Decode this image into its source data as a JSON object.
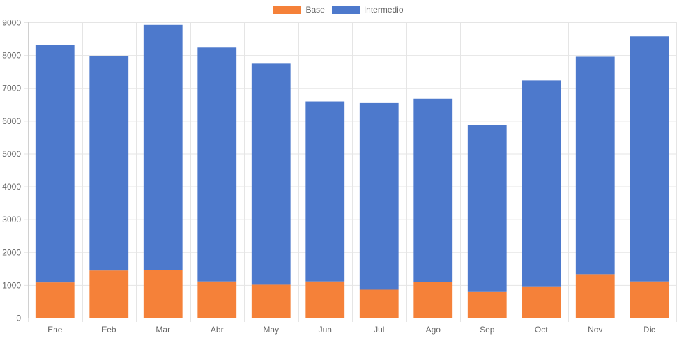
{
  "chart_data": {
    "type": "bar",
    "stacked": true,
    "categories": [
      "Ene",
      "Feb",
      "Mar",
      "Abr",
      "May",
      "Jun",
      "Jul",
      "Ago",
      "Sep",
      "Oct",
      "Nov",
      "Dic"
    ],
    "series": [
      {
        "name": "Base",
        "color": "#f58139",
        "values": [
          1080,
          1440,
          1450,
          1110,
          1010,
          1110,
          860,
          1090,
          790,
          940,
          1330,
          1110
        ]
      },
      {
        "name": "Intermedio",
        "color": "#4d79cc",
        "values": [
          7230,
          6540,
          7470,
          7120,
          6730,
          5480,
          5680,
          5580,
          5080,
          6290,
          6620,
          7460
        ]
      }
    ],
    "ylim": [
      0,
      9000
    ],
    "yticks": [
      0,
      1000,
      2000,
      3000,
      4000,
      5000,
      6000,
      7000,
      8000,
      9000
    ],
    "grid": true,
    "legend_position": "top-center"
  }
}
